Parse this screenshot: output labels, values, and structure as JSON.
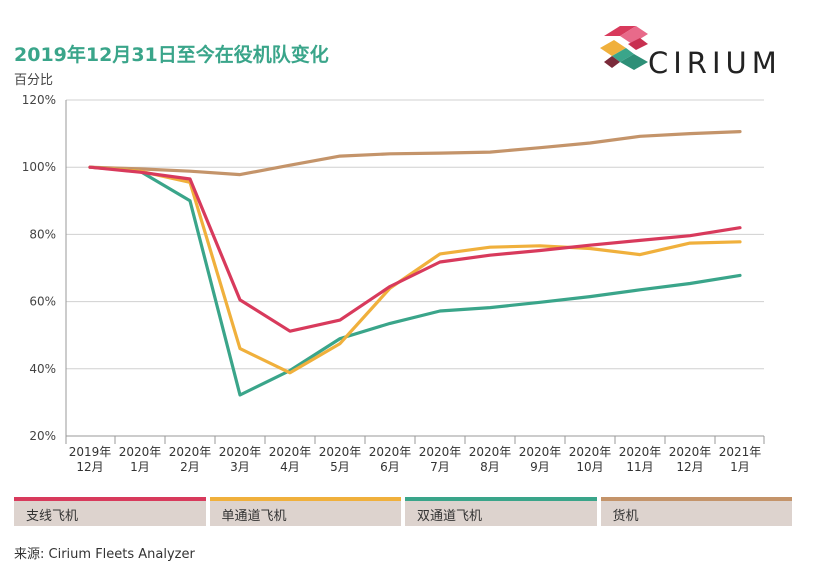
{
  "title": "2019年12月31日至今在役机队变化",
  "y_unit_label": "百分比",
  "logo_text": "CIRIUM",
  "source_text": "来源:  Cirium Fleets Analyzer",
  "chart_data": {
    "type": "line",
    "title": "2019年12月31日至今在役机队变化",
    "ylabel": "百分比",
    "xlabel": "",
    "ylim": [
      20,
      120
    ],
    "yticks": [
      20,
      40,
      60,
      80,
      100,
      120
    ],
    "ytick_labels": [
      "20%",
      "40%",
      "60%",
      "80%",
      "100%",
      "120%"
    ],
    "grid": true,
    "legend_position": "bottom",
    "categories": [
      [
        "2019年",
        "12月"
      ],
      [
        "2020年",
        "1月"
      ],
      [
        "2020年",
        "2月"
      ],
      [
        "2020年",
        "3月"
      ],
      [
        "2020年",
        "4月"
      ],
      [
        "2020年",
        "5月"
      ],
      [
        "2020年",
        "6月"
      ],
      [
        "2020年",
        "7月"
      ],
      [
        "2020年",
        "8月"
      ],
      [
        "2020年",
        "9月"
      ],
      [
        "2020年",
        "10月"
      ],
      [
        "2020年",
        "11月"
      ],
      [
        "2020年",
        "12月"
      ],
      [
        "2021年",
        "1月"
      ]
    ],
    "series": [
      {
        "name": "支线飞机",
        "color": "#d83a5c",
        "values": [
          100,
          98.5,
          96.5,
          60.5,
          51.2,
          54.5,
          64.5,
          71.8,
          73.8,
          75.2,
          76.8,
          78.2,
          79.6,
          82
        ]
      },
      {
        "name": "单通道飞机",
        "color": "#f0b03c",
        "values": [
          100,
          98.8,
          95.5,
          46,
          38.8,
          47.5,
          64,
          74.2,
          76.2,
          76.6,
          75.8,
          74,
          77.4,
          77.8
        ]
      },
      {
        "name": "双通道飞机",
        "color": "#3aa58a",
        "values": [
          100,
          98.8,
          90,
          32.2,
          39.5,
          49,
          53.5,
          57.2,
          58.2,
          59.8,
          61.5,
          63.5,
          65.4,
          67.8
        ]
      },
      {
        "name": "货机",
        "color": "#c4946a",
        "values": [
          100,
          99.5,
          98.8,
          97.8,
          100.6,
          103.3,
          104,
          104.2,
          104.5,
          105.8,
          107.2,
          109.2,
          110,
          110.6
        ]
      }
    ]
  }
}
